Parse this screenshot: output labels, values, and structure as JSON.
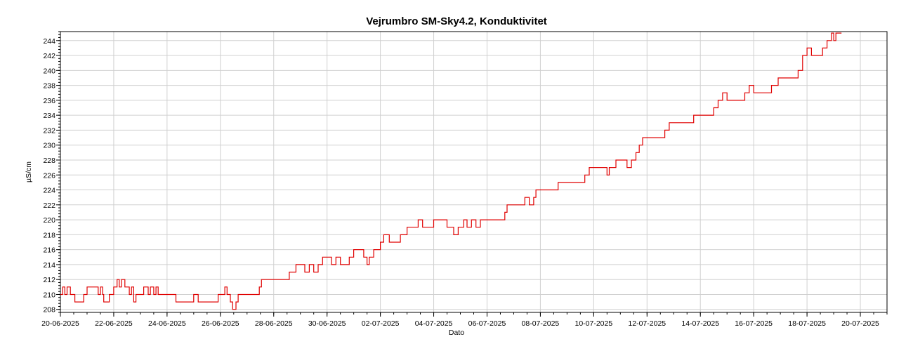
{
  "chart_data": {
    "type": "line",
    "title": "Vejrumbro SM-Sky4.2, Konduktivitet",
    "xlabel": "Dato",
    "ylabel": "µS/cm",
    "x_ticks": [
      "20-06-2025",
      "22-06-2025",
      "24-06-2025",
      "26-06-2025",
      "28-06-2025",
      "30-06-2025",
      "02-07-2025",
      "04-07-2025",
      "06-07-2025",
      "08-07-2025",
      "10-07-2025",
      "12-07-2025",
      "14-07-2025",
      "16-07-2025",
      "18-07-2025",
      "20-07-2025"
    ],
    "y_ticks": [
      208,
      210,
      212,
      214,
      216,
      218,
      220,
      222,
      224,
      226,
      228,
      230,
      232,
      234,
      236,
      238,
      240,
      242,
      244
    ],
    "xlim": [
      "20-06-2025",
      "21-07-2025"
    ],
    "ylim": [
      207.6,
      245.2
    ],
    "grid": true,
    "series": [
      {
        "color": "#e00000",
        "points": [
          [
            "20-06-2025 00:00",
            210
          ],
          [
            "20-06-2025 02:00",
            211
          ],
          [
            "20-06-2025 04:00",
            210
          ],
          [
            "20-06-2025 06:00",
            211
          ],
          [
            "20-06-2025 09:00",
            210
          ],
          [
            "20-06-2025 13:00",
            209
          ],
          [
            "20-06-2025 18:00",
            209
          ],
          [
            "20-06-2025 21:00",
            210
          ],
          [
            "21-06-2025 00:00",
            211
          ],
          [
            "21-06-2025 08:00",
            211
          ],
          [
            "21-06-2025 10:00",
            210
          ],
          [
            "21-06-2025 12:00",
            211
          ],
          [
            "21-06-2025 14:00",
            210
          ],
          [
            "21-06-2025 15:00",
            209
          ],
          [
            "21-06-2025 18:00",
            209
          ],
          [
            "21-06-2025 20:00",
            210
          ],
          [
            "22-06-2025 00:00",
            211
          ],
          [
            "22-06-2025 03:00",
            212
          ],
          [
            "22-06-2025 05:00",
            211
          ],
          [
            "22-06-2025 07:00",
            212
          ],
          [
            "22-06-2025 10:00",
            211
          ],
          [
            "22-06-2025 14:00",
            210
          ],
          [
            "22-06-2025 16:00",
            211
          ],
          [
            "22-06-2025 18:00",
            209
          ],
          [
            "22-06-2025 20:00",
            210
          ],
          [
            "23-06-2025 00:00",
            210
          ],
          [
            "23-06-2025 03:00",
            211
          ],
          [
            "23-06-2025 07:00",
            210
          ],
          [
            "23-06-2025 09:00",
            211
          ],
          [
            "23-06-2025 12:00",
            210
          ],
          [
            "23-06-2025 14:00",
            211
          ],
          [
            "23-06-2025 16:00",
            210
          ],
          [
            "24-06-2025 00:00",
            210
          ],
          [
            "24-06-2025 06:00",
            210
          ],
          [
            "24-06-2025 08:00",
            209
          ],
          [
            "24-06-2025 12:00",
            209
          ],
          [
            "24-06-2025 18:00",
            209
          ],
          [
            "25-06-2025 00:00",
            210
          ],
          [
            "25-06-2025 04:00",
            209
          ],
          [
            "25-06-2025 12:00",
            209
          ],
          [
            "25-06-2025 20:00",
            209
          ],
          [
            "25-06-2025 22:00",
            210
          ],
          [
            "26-06-2025 00:00",
            210
          ],
          [
            "26-06-2025 04:00",
            211
          ],
          [
            "26-06-2025 06:00",
            210
          ],
          [
            "26-06-2025 09:00",
            209
          ],
          [
            "26-06-2025 11:00",
            208
          ],
          [
            "26-06-2025 14:00",
            209
          ],
          [
            "26-06-2025 16:00",
            210
          ],
          [
            "27-06-2025 00:00",
            210
          ],
          [
            "27-06-2025 08:00",
            210
          ],
          [
            "27-06-2025 11:00",
            211
          ],
          [
            "27-06-2025 13:00",
            212
          ],
          [
            "28-06-2025 00:00",
            212
          ],
          [
            "28-06-2025 10:00",
            212
          ],
          [
            "28-06-2025 14:00",
            213
          ],
          [
            "28-06-2025 20:00",
            214
          ],
          [
            "29-06-2025 00:00",
            214
          ],
          [
            "29-06-2025 04:00",
            213
          ],
          [
            "29-06-2025 08:00",
            214
          ],
          [
            "29-06-2025 12:00",
            213
          ],
          [
            "29-06-2025 16:00",
            214
          ],
          [
            "29-06-2025 20:00",
            215
          ],
          [
            "30-06-2025 00:00",
            215
          ],
          [
            "30-06-2025 04:00",
            214
          ],
          [
            "30-06-2025 08:00",
            215
          ],
          [
            "30-06-2025 12:00",
            214
          ],
          [
            "30-06-2025 20:00",
            215
          ],
          [
            "01-07-2025 00:00",
            216
          ],
          [
            "01-07-2025 06:00",
            216
          ],
          [
            "01-07-2025 09:00",
            215
          ],
          [
            "01-07-2025 12:00",
            214
          ],
          [
            "01-07-2025 14:00",
            215
          ],
          [
            "01-07-2025 18:00",
            216
          ],
          [
            "02-07-2025 00:00",
            217
          ],
          [
            "02-07-2025 03:00",
            218
          ],
          [
            "02-07-2025 08:00",
            217
          ],
          [
            "02-07-2025 14:00",
            217
          ],
          [
            "02-07-2025 18:00",
            218
          ],
          [
            "03-07-2025 00:00",
            219
          ],
          [
            "03-07-2025 06:00",
            219
          ],
          [
            "03-07-2025 10:00",
            220
          ],
          [
            "03-07-2025 14:00",
            219
          ],
          [
            "04-07-2025 00:00",
            220
          ],
          [
            "04-07-2025 08:00",
            220
          ],
          [
            "04-07-2025 12:00",
            219
          ],
          [
            "04-07-2025 18:00",
            218
          ],
          [
            "04-07-2025 22:00",
            219
          ],
          [
            "05-07-2025 00:00",
            219
          ],
          [
            "05-07-2025 03:00",
            220
          ],
          [
            "05-07-2025 06:00",
            219
          ],
          [
            "05-07-2025 10:00",
            220
          ],
          [
            "05-07-2025 14:00",
            219
          ],
          [
            "05-07-2025 18:00",
            220
          ],
          [
            "06-07-2025 00:00",
            220
          ],
          [
            "06-07-2025 12:00",
            220
          ],
          [
            "06-07-2025 16:00",
            221
          ],
          [
            "06-07-2025 18:00",
            222
          ],
          [
            "07-07-2025 00:00",
            222
          ],
          [
            "07-07-2025 06:00",
            222
          ],
          [
            "07-07-2025 10:00",
            223
          ],
          [
            "07-07-2025 14:00",
            222
          ],
          [
            "07-07-2025 18:00",
            223
          ],
          [
            "07-07-2025 20:00",
            224
          ],
          [
            "08-07-2025 00:00",
            224
          ],
          [
            "08-07-2025 12:00",
            224
          ],
          [
            "08-07-2025 16:00",
            225
          ],
          [
            "09-07-2025 00:00",
            225
          ],
          [
            "09-07-2025 12:00",
            225
          ],
          [
            "09-07-2025 16:00",
            226
          ],
          [
            "09-07-2025 20:00",
            227
          ],
          [
            "10-07-2025 00:00",
            227
          ],
          [
            "10-07-2025 08:00",
            227
          ],
          [
            "10-07-2025 12:00",
            226
          ],
          [
            "10-07-2025 14:00",
            227
          ],
          [
            "10-07-2025 20:00",
            228
          ],
          [
            "11-07-2025 00:00",
            228
          ],
          [
            "11-07-2025 04:00",
            228
          ],
          [
            "11-07-2025 06:00",
            227
          ],
          [
            "11-07-2025 10:00",
            228
          ],
          [
            "11-07-2025 14:00",
            229
          ],
          [
            "11-07-2025 17:00",
            230
          ],
          [
            "11-07-2025 20:00",
            231
          ],
          [
            "12-07-2025 00:00",
            231
          ],
          [
            "12-07-2025 12:00",
            231
          ],
          [
            "12-07-2025 16:00",
            232
          ],
          [
            "12-07-2025 20:00",
            233
          ],
          [
            "13-07-2025 00:00",
            233
          ],
          [
            "13-07-2025 12:00",
            233
          ],
          [
            "13-07-2025 18:00",
            234
          ],
          [
            "14-07-2025 00:00",
            234
          ],
          [
            "14-07-2025 08:00",
            234
          ],
          [
            "14-07-2025 12:00",
            235
          ],
          [
            "14-07-2025 16:00",
            236
          ],
          [
            "14-07-2025 20:00",
            237
          ],
          [
            "15-07-2025 00:00",
            236
          ],
          [
            "15-07-2025 12:00",
            236
          ],
          [
            "15-07-2025 16:00",
            237
          ],
          [
            "15-07-2025 20:00",
            238
          ],
          [
            "16-07-2025 00:00",
            237
          ],
          [
            "16-07-2025 12:00",
            237
          ],
          [
            "16-07-2025 16:00",
            238
          ],
          [
            "16-07-2025 22:00",
            239
          ],
          [
            "17-07-2025 00:00",
            239
          ],
          [
            "17-07-2025 12:00",
            239
          ],
          [
            "17-07-2025 16:00",
            240
          ],
          [
            "17-07-2025 20:00",
            242
          ],
          [
            "18-07-2025 00:00",
            243
          ],
          [
            "18-07-2025 04:00",
            242
          ],
          [
            "18-07-2025 10:00",
            242
          ],
          [
            "18-07-2025 14:00",
            243
          ],
          [
            "18-07-2025 18:00",
            244
          ],
          [
            "18-07-2025 22:00",
            245
          ],
          [
            "19-07-2025 00:00",
            244
          ],
          [
            "19-07-2025 02:00",
            245
          ]
        ]
      }
    ]
  }
}
